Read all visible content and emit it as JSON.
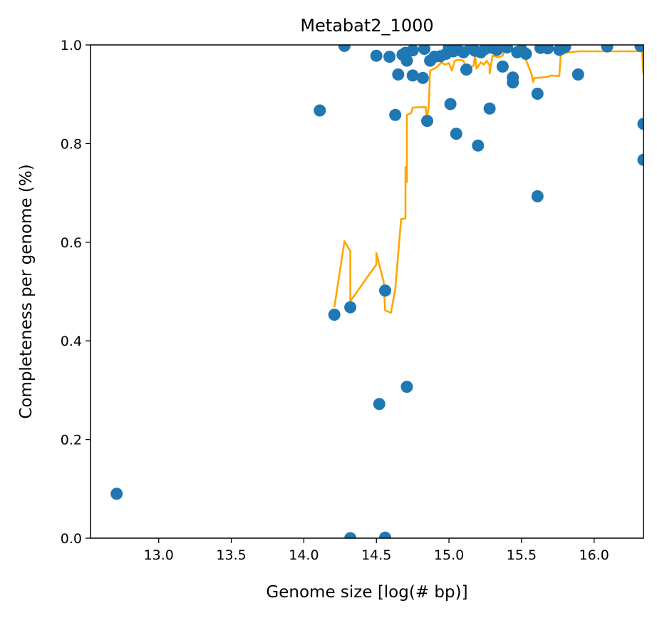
{
  "chart_data": {
    "type": "scatter",
    "title": "Metabat2_1000",
    "xlabel": "Genome size [log(# bp)]",
    "ylabel": "Completeness per genome (%)",
    "xlim": [
      12.53,
      16.34
    ],
    "ylim": [
      0.0,
      1.0
    ],
    "xticks": [
      "13.0",
      "13.5",
      "14.0",
      "14.5",
      "15.0",
      "15.5",
      "16.0"
    ],
    "yticks": [
      "0.0",
      "0.2",
      "0.4",
      "0.6",
      "0.8",
      "1.0"
    ],
    "grid": false,
    "legend": "none",
    "colors": {
      "points": "#1f77b4",
      "line": "#ffa500"
    },
    "series": [
      {
        "kind": "scatter",
        "points": [
          [
            12.71,
            0.09
          ],
          [
            14.11,
            0.867
          ],
          [
            14.21,
            0.453
          ],
          [
            14.28,
            0.998
          ],
          [
            14.32,
            0.468
          ],
          [
            14.32,
            0.0
          ],
          [
            14.5,
            0.978
          ],
          [
            14.52,
            0.272
          ],
          [
            14.56,
            0.502
          ],
          [
            14.56,
            0.001
          ],
          [
            14.59,
            0.976
          ],
          [
            14.63,
            0.858
          ],
          [
            14.65,
            0.94
          ],
          [
            14.68,
            0.98
          ],
          [
            14.7,
            0.984
          ],
          [
            14.71,
            0.307
          ],
          [
            14.71,
            0.968
          ],
          [
            14.75,
            0.938
          ],
          [
            14.75,
            0.989
          ],
          [
            14.82,
            0.933
          ],
          [
            14.83,
            0.992
          ],
          [
            14.85,
            0.846
          ],
          [
            14.87,
            0.968
          ],
          [
            14.9,
            0.976
          ],
          [
            14.94,
            0.977
          ],
          [
            14.98,
            0.982
          ],
          [
            15.0,
            0.995
          ],
          [
            15.01,
            0.88
          ],
          [
            15.03,
            0.987
          ],
          [
            15.05,
            0.82
          ],
          [
            15.06,
            0.99
          ],
          [
            15.1,
            0.985
          ],
          [
            15.12,
            0.95
          ],
          [
            15.15,
            0.993
          ],
          [
            15.18,
            0.988
          ],
          [
            15.2,
            0.796
          ],
          [
            15.22,
            0.985
          ],
          [
            15.25,
            0.992
          ],
          [
            15.28,
            0.871
          ],
          [
            15.3,
            0.994
          ],
          [
            15.33,
            0.99
          ],
          [
            15.37,
            0.956
          ],
          [
            15.4,
            0.995
          ],
          [
            15.44,
            0.934
          ],
          [
            15.44,
            0.924
          ],
          [
            15.47,
            0.985
          ],
          [
            15.5,
            0.99
          ],
          [
            15.53,
            0.982
          ],
          [
            15.61,
            0.901
          ],
          [
            15.61,
            0.693
          ],
          [
            15.63,
            0.994
          ],
          [
            15.68,
            0.993
          ],
          [
            15.76,
            0.99
          ],
          [
            15.8,
            0.996
          ],
          [
            15.89,
            0.94
          ],
          [
            16.09,
            0.997
          ],
          [
            16.32,
            0.998
          ],
          [
            16.34,
            0.84
          ],
          [
            16.34,
            0.767
          ]
        ]
      },
      {
        "kind": "line",
        "points": [
          [
            14.21,
            0.468
          ],
          [
            14.28,
            0.602
          ],
          [
            14.32,
            0.582
          ],
          [
            14.32,
            0.48
          ],
          [
            14.5,
            0.555
          ],
          [
            14.5,
            0.578
          ],
          [
            14.55,
            0.52
          ],
          [
            14.56,
            0.462
          ],
          [
            14.6,
            0.457
          ],
          [
            14.63,
            0.505
          ],
          [
            14.67,
            0.647
          ],
          [
            14.7,
            0.648
          ],
          [
            14.7,
            0.752
          ],
          [
            14.71,
            0.722
          ],
          [
            14.71,
            0.858
          ],
          [
            14.74,
            0.862
          ],
          [
            14.75,
            0.873
          ],
          [
            14.84,
            0.874
          ],
          [
            14.84,
            0.868
          ],
          [
            14.85,
            0.852
          ],
          [
            14.86,
            0.874
          ],
          [
            14.87,
            0.948
          ],
          [
            14.9,
            0.952
          ],
          [
            14.92,
            0.956
          ],
          [
            14.95,
            0.965
          ],
          [
            14.97,
            0.96
          ],
          [
            15.0,
            0.963
          ],
          [
            15.02,
            0.948
          ],
          [
            15.04,
            0.968
          ],
          [
            15.07,
            0.97
          ],
          [
            15.1,
            0.968
          ],
          [
            15.12,
            0.95
          ],
          [
            15.15,
            0.955
          ],
          [
            15.17,
            0.958
          ],
          [
            15.18,
            0.98
          ],
          [
            15.19,
            0.952
          ],
          [
            15.22,
            0.965
          ],
          [
            15.24,
            0.96
          ],
          [
            15.26,
            0.968
          ],
          [
            15.28,
            0.958
          ],
          [
            15.28,
            0.942
          ],
          [
            15.3,
            0.978
          ],
          [
            15.34,
            0.975
          ],
          [
            15.37,
            0.978
          ],
          [
            15.38,
            0.992
          ],
          [
            15.4,
            0.985
          ],
          [
            15.42,
            0.988
          ],
          [
            15.45,
            0.985
          ],
          [
            15.48,
            0.978
          ],
          [
            15.52,
            0.978
          ],
          [
            15.55,
            0.955
          ],
          [
            15.57,
            0.94
          ],
          [
            15.58,
            0.925
          ],
          [
            15.59,
            0.933
          ],
          [
            15.68,
            0.935
          ],
          [
            15.7,
            0.938
          ],
          [
            15.76,
            0.937
          ],
          [
            15.77,
            0.98
          ],
          [
            15.82,
            0.985
          ],
          [
            15.9,
            0.987
          ],
          [
            16.05,
            0.987
          ],
          [
            16.2,
            0.987
          ],
          [
            16.33,
            0.987
          ],
          [
            16.34,
            0.94
          ]
        ]
      }
    ]
  }
}
